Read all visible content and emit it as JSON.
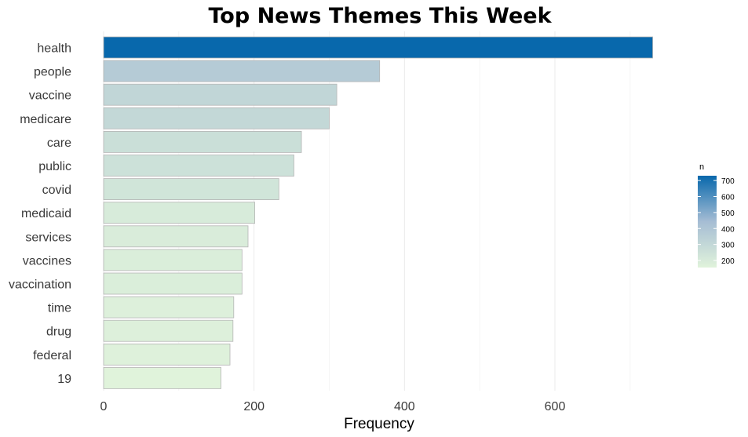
{
  "chart_data": {
    "type": "bar",
    "orientation": "horizontal",
    "title": "Top News Themes This Week",
    "xlabel": "Frequency",
    "ylabel": "",
    "categories": [
      "health",
      "people",
      "vaccine",
      "medicare",
      "care",
      "public",
      "covid",
      "medicaid",
      "services",
      "vaccines",
      "vaccination",
      "time",
      "drug",
      "federal",
      "19"
    ],
    "values": [
      730,
      367,
      310,
      300,
      263,
      253,
      233,
      201,
      192,
      184,
      184,
      173,
      172,
      168,
      156
    ],
    "xlim": [
      0,
      760
    ],
    "xticks": [
      0,
      200,
      400,
      600
    ],
    "grid": true,
    "legend": {
      "title": "n",
      "position": "right",
      "ticks": [
        200,
        300,
        400,
        500,
        600,
        700
      ],
      "range": [
        156,
        730
      ],
      "color_low": "#e0f3db",
      "color_mid": "#a6bdd4",
      "color_high": "#0868ac"
    }
  }
}
